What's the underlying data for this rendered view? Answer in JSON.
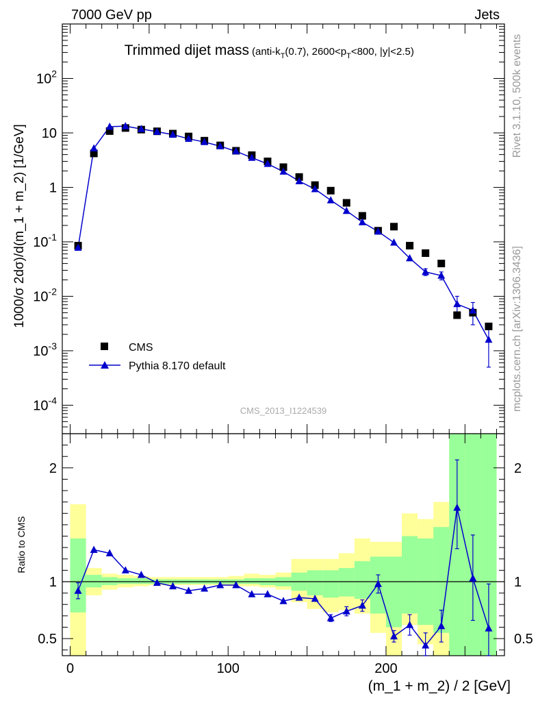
{
  "header": {
    "left": "7000 GeV pp",
    "right": "Jets"
  },
  "side_labels": {
    "rivet": "Rivet 3.1.10,  500k events",
    "mcplots": "mcplots.cern.ch [arXiv:1306.3436]"
  },
  "chart_data": [
    {
      "type": "scatter",
      "panel": "main",
      "title": "Trimmed dijet mass",
      "subtitle_parts": [
        "(anti-k",
        "T",
        "(0.7), 2600<p",
        "T",
        "<800, |y|<2.5)"
      ],
      "watermark": "CMS_2013_I1224539",
      "ylabel": "1000/σ 2dσ)/d(m_1 + m_2) [1/GeV]",
      "yscale": "log",
      "ylim": [
        3e-05,
        1000
      ],
      "xlim": [
        -5,
        275
      ],
      "y_tick_labels": [
        "10^-4",
        "10^-3",
        "10^-2",
        "10^-1",
        "1",
        "10",
        "10^2"
      ],
      "legend_position": "lower-left",
      "colors": {
        "data": "#000000",
        "mc": "#0000cc"
      },
      "series": [
        {
          "name": "CMS",
          "marker": "square",
          "x": [
            5,
            15,
            25,
            35,
            45,
            55,
            65,
            75,
            85,
            95,
            105,
            115,
            125,
            135,
            145,
            155,
            165,
            175,
            185,
            195,
            205,
            215,
            225,
            235,
            245,
            255,
            265
          ],
          "y": [
            0.085,
            4.2,
            10.8,
            12.3,
            11.5,
            10.7,
            9.7,
            8.6,
            7.2,
            5.9,
            4.7,
            3.9,
            3.0,
            2.35,
            1.55,
            1.1,
            0.87,
            0.52,
            0.3,
            0.16,
            0.19,
            0.085,
            0.062,
            0.04,
            0.0045,
            0.005,
            0.0028
          ]
        },
        {
          "name": "Pythia 8.170 default",
          "marker": "triangle",
          "x": [
            5,
            15,
            25,
            35,
            45,
            55,
            65,
            75,
            85,
            95,
            105,
            115,
            125,
            135,
            145,
            155,
            165,
            175,
            185,
            195,
            205,
            215,
            225,
            235,
            245,
            255,
            265
          ],
          "y": [
            0.078,
            5.2,
            13.0,
            13.3,
            11.8,
            10.5,
            9.3,
            7.8,
            6.8,
            5.7,
            4.6,
            3.5,
            2.7,
            1.95,
            1.3,
            0.93,
            0.58,
            0.37,
            0.23,
            0.155,
            0.097,
            0.05,
            0.028,
            0.024,
            0.0072,
            0.0055,
            0.0016
          ],
          "y_err_low": [
            0,
            0,
            0,
            0,
            0,
            0,
            0,
            0,
            0,
            0,
            0,
            0,
            0,
            0,
            0,
            0,
            0,
            0,
            0,
            0,
            0,
            0,
            0.004,
            0.004,
            0.0021,
            0.0025,
            0.0011
          ],
          "y_err_high": [
            0,
            0,
            0,
            0,
            0,
            0,
            0,
            0,
            0,
            0,
            0,
            0,
            0,
            0,
            0,
            0,
            0,
            0,
            0,
            0,
            0,
            0,
            0.004,
            0.004,
            0.0028,
            0.0022,
            0.0009
          ]
        }
      ]
    },
    {
      "type": "line",
      "panel": "ratio",
      "ylabel": "Ratio to CMS",
      "xlabel": "(m_1 + m_2) / 2 [GeV]",
      "ylim": [
        0.35,
        2.3
      ],
      "xlim": [
        -5,
        275
      ],
      "x_tick_labels": [
        "0",
        "100",
        "200"
      ],
      "y_tick_labels": [
        "0.5",
        "1",
        "2"
      ],
      "bands": {
        "edges": [
          0,
          10,
          20,
          30,
          40,
          50,
          60,
          70,
          80,
          90,
          100,
          110,
          120,
          130,
          140,
          150,
          160,
          170,
          180,
          190,
          200,
          210,
          220,
          230,
          240,
          250,
          260,
          270
        ],
        "yellow_low": [
          0.35,
          0.88,
          0.93,
          0.95,
          0.96,
          0.97,
          0.97,
          0.97,
          0.97,
          0.97,
          0.96,
          0.96,
          0.95,
          0.93,
          0.82,
          0.76,
          0.73,
          0.75,
          0.72,
          0.55,
          0.35,
          0.62,
          0.45,
          0.35,
          0.35,
          0.35,
          0.35
        ],
        "yellow_high": [
          1.68,
          1.12,
          1.07,
          1.06,
          1.05,
          1.04,
          1.04,
          1.04,
          1.04,
          1.04,
          1.05,
          1.07,
          1.06,
          1.08,
          1.2,
          1.2,
          1.2,
          1.25,
          1.38,
          1.35,
          1.35,
          1.6,
          1.55,
          1.7,
          2.3,
          2.3,
          2.3
        ],
        "green_low": [
          0.73,
          0.95,
          0.97,
          0.98,
          0.98,
          0.98,
          0.98,
          0.98,
          0.98,
          0.98,
          0.98,
          0.98,
          0.97,
          0.96,
          0.92,
          0.88,
          0.86,
          0.87,
          0.85,
          0.72,
          0.6,
          0.72,
          0.62,
          0.55,
          0.35,
          0.35,
          0.35
        ],
        "green_high": [
          1.38,
          1.06,
          1.04,
          1.03,
          1.03,
          1.02,
          1.02,
          1.02,
          1.02,
          1.02,
          1.02,
          1.03,
          1.03,
          1.04,
          1.08,
          1.1,
          1.1,
          1.12,
          1.18,
          1.22,
          1.22,
          1.4,
          1.38,
          1.48,
          2.3,
          2.3,
          2.3
        ],
        "colors": {
          "yellow": "#ffff99",
          "green": "#99ff99"
        }
      },
      "series": [
        {
          "name": "Pythia 8.170 default",
          "x": [
            5,
            15,
            25,
            35,
            45,
            55,
            65,
            75,
            85,
            95,
            105,
            115,
            125,
            135,
            145,
            155,
            165,
            175,
            185,
            195,
            205,
            215,
            225,
            235,
            245,
            255,
            265
          ],
          "y": [
            0.92,
            1.28,
            1.25,
            1.1,
            1.06,
            0.99,
            0.96,
            0.92,
            0.94,
            0.97,
            0.97,
            0.89,
            0.89,
            0.83,
            0.86,
            0.85,
            0.68,
            0.74,
            0.79,
            0.98,
            0.52,
            0.62,
            0.44,
            0.61,
            1.65,
            1.03,
            0.59
          ],
          "y_err_low": [
            0.07,
            0.02,
            0.02,
            0.01,
            0.01,
            0.01,
            0.01,
            0.01,
            0.01,
            0.01,
            0.01,
            0.01,
            0.01,
            0.02,
            0.02,
            0.02,
            0.03,
            0.04,
            0.05,
            0.08,
            0.05,
            0.09,
            0.11,
            0.14,
            0.36,
            0.37,
            0.38
          ],
          "y_err_high": [
            0.07,
            0.02,
            0.02,
            0.01,
            0.01,
            0.01,
            0.01,
            0.01,
            0.01,
            0.01,
            0.01,
            0.01,
            0.01,
            0.02,
            0.02,
            0.02,
            0.03,
            0.04,
            0.05,
            0.08,
            0.05,
            0.09,
            0.11,
            0.14,
            0.42,
            0.38,
            0.39
          ]
        }
      ]
    }
  ]
}
